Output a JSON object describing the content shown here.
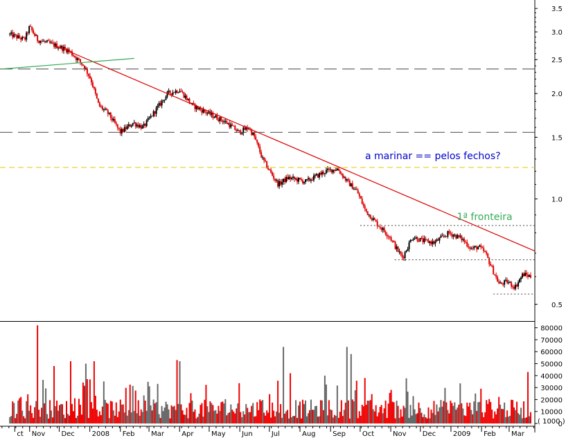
{
  "chart_data": [
    {
      "type": "candlestick",
      "scale": "log",
      "y_range": [
        0.45,
        3.7
      ],
      "y_ticks": [
        "3.5",
        "3.0",
        "2.5",
        "2.0",
        "1.5",
        "1.0",
        "0.5"
      ],
      "y_tick_values": [
        3.5,
        3.0,
        2.5,
        2.0,
        1.5,
        1.0,
        0.5
      ],
      "x_labels": [
        "ct",
        "Nov",
        "Dec",
        "2008",
        "Feb",
        "Mar",
        "Apr",
        "May",
        "Jun",
        "Jul",
        "Aug",
        "Sep",
        "Oct",
        "Nov",
        "Dec",
        "2009",
        "Feb",
        "Mar"
      ],
      "x_label_days": [
        -15,
        0,
        30,
        61,
        92,
        121,
        152,
        182,
        213,
        243,
        274,
        305,
        335,
        366,
        396,
        427,
        458,
        486
      ],
      "price_path": [
        {
          "day": -20,
          "price": 2.95
        },
        {
          "day": -5,
          "price": 2.85
        },
        {
          "day": 0,
          "price": 3.1
        },
        {
          "day": 8,
          "price": 2.85
        },
        {
          "day": 20,
          "price": 2.78
        },
        {
          "day": 30,
          "price": 2.72
        },
        {
          "day": 40,
          "price": 2.65
        },
        {
          "day": 55,
          "price": 2.4
        },
        {
          "day": 62,
          "price": 2.2
        },
        {
          "day": 70,
          "price": 1.85
        },
        {
          "day": 80,
          "price": 1.75
        },
        {
          "day": 92,
          "price": 1.55
        },
        {
          "day": 105,
          "price": 1.65
        },
        {
          "day": 115,
          "price": 1.6
        },
        {
          "day": 125,
          "price": 1.75
        },
        {
          "day": 140,
          "price": 2.0
        },
        {
          "day": 152,
          "price": 2.05
        },
        {
          "day": 165,
          "price": 1.85
        },
        {
          "day": 182,
          "price": 1.75
        },
        {
          "day": 200,
          "price": 1.65
        },
        {
          "day": 212,
          "price": 1.55
        },
        {
          "day": 222,
          "price": 1.6
        },
        {
          "day": 228,
          "price": 1.5
        },
        {
          "day": 236,
          "price": 1.3
        },
        {
          "day": 245,
          "price": 1.18
        },
        {
          "day": 252,
          "price": 1.1
        },
        {
          "day": 262,
          "price": 1.15
        },
        {
          "day": 280,
          "price": 1.12
        },
        {
          "day": 300,
          "price": 1.2
        },
        {
          "day": 312,
          "price": 1.22
        },
        {
          "day": 322,
          "price": 1.12
        },
        {
          "day": 332,
          "price": 1.05
        },
        {
          "day": 340,
          "price": 0.93
        },
        {
          "day": 352,
          "price": 0.85
        },
        {
          "day": 365,
          "price": 0.78
        },
        {
          "day": 372,
          "price": 0.72
        },
        {
          "day": 378,
          "price": 0.68
        },
        {
          "day": 388,
          "price": 0.78
        },
        {
          "day": 398,
          "price": 0.76
        },
        {
          "day": 410,
          "price": 0.75
        },
        {
          "day": 425,
          "price": 0.8
        },
        {
          "day": 438,
          "price": 0.77
        },
        {
          "day": 448,
          "price": 0.72
        },
        {
          "day": 455,
          "price": 0.73
        },
        {
          "day": 462,
          "price": 0.7
        },
        {
          "day": 470,
          "price": 0.62
        },
        {
          "day": 476,
          "price": 0.57
        },
        {
          "day": 484,
          "price": 0.58
        },
        {
          "day": 492,
          "price": 0.56
        },
        {
          "day": 500,
          "price": 0.61
        },
        {
          "day": 508,
          "price": 0.6
        }
      ],
      "support_lines": [
        {
          "price": 2.35,
          "style": "long-dash",
          "color": "#444444"
        },
        {
          "price": 1.55,
          "style": "long-dash",
          "color": "#444444"
        },
        {
          "price": 1.23,
          "style": "dash",
          "color": "#e8c800"
        },
        {
          "price": 0.84,
          "style": "dot",
          "color": "#444444",
          "from_day": 335
        },
        {
          "price": 0.67,
          "style": "dot",
          "color": "#444444",
          "from_day": 370
        },
        {
          "price": 0.535,
          "style": "dot",
          "color": "#444444",
          "from_day": 470
        }
      ],
      "trendlines": [
        {
          "color": "#dd0000",
          "from": {
            "day": 25,
            "price": 2.75
          },
          "to": {
            "day": 512,
            "price": 0.71
          }
        },
        {
          "color": "#33aa55",
          "from": {
            "day": -28,
            "price": 2.35
          },
          "to": {
            "day": 106,
            "price": 2.52
          }
        }
      ],
      "annotations": [
        {
          "text": "a marinar == pelos fechos?",
          "color": "#0000cc",
          "day": 340,
          "price": 1.3
        },
        {
          "text": "1ª fronteira",
          "color": "#33aa55",
          "day": 433,
          "price": 0.87
        }
      ]
    },
    {
      "type": "bar",
      "title": "",
      "y_range": [
        0,
        85000
      ],
      "y_ticks": [
        "80000",
        "70000",
        "60000",
        "50000",
        "40000",
        "30000",
        "20000",
        "10000",
        "0"
      ],
      "y_tick_values": [
        80000,
        70000,
        60000,
        50000,
        40000,
        30000,
        20000,
        10000,
        0
      ],
      "unit_label": "( 1000 )",
      "volume_spikes": [
        {
          "day": 8,
          "value": 82000
        },
        {
          "day": 25,
          "value": 48000
        },
        {
          "day": 42,
          "value": 52000
        },
        {
          "day": 57,
          "value": 50000
        },
        {
          "day": 65,
          "value": 52000
        },
        {
          "day": 150,
          "value": 53000
        },
        {
          "day": 153,
          "value": 52000
        },
        {
          "day": 258,
          "value": 64000
        },
        {
          "day": 265,
          "value": 42000
        },
        {
          "day": 300,
          "value": 40000
        },
        {
          "day": 322,
          "value": 64000
        },
        {
          "day": 326,
          "value": 58000
        },
        {
          "day": 340,
          "value": 38000
        },
        {
          "day": 505,
          "value": 43000
        },
        {
          "day": 513,
          "value": 35000
        }
      ]
    }
  ]
}
